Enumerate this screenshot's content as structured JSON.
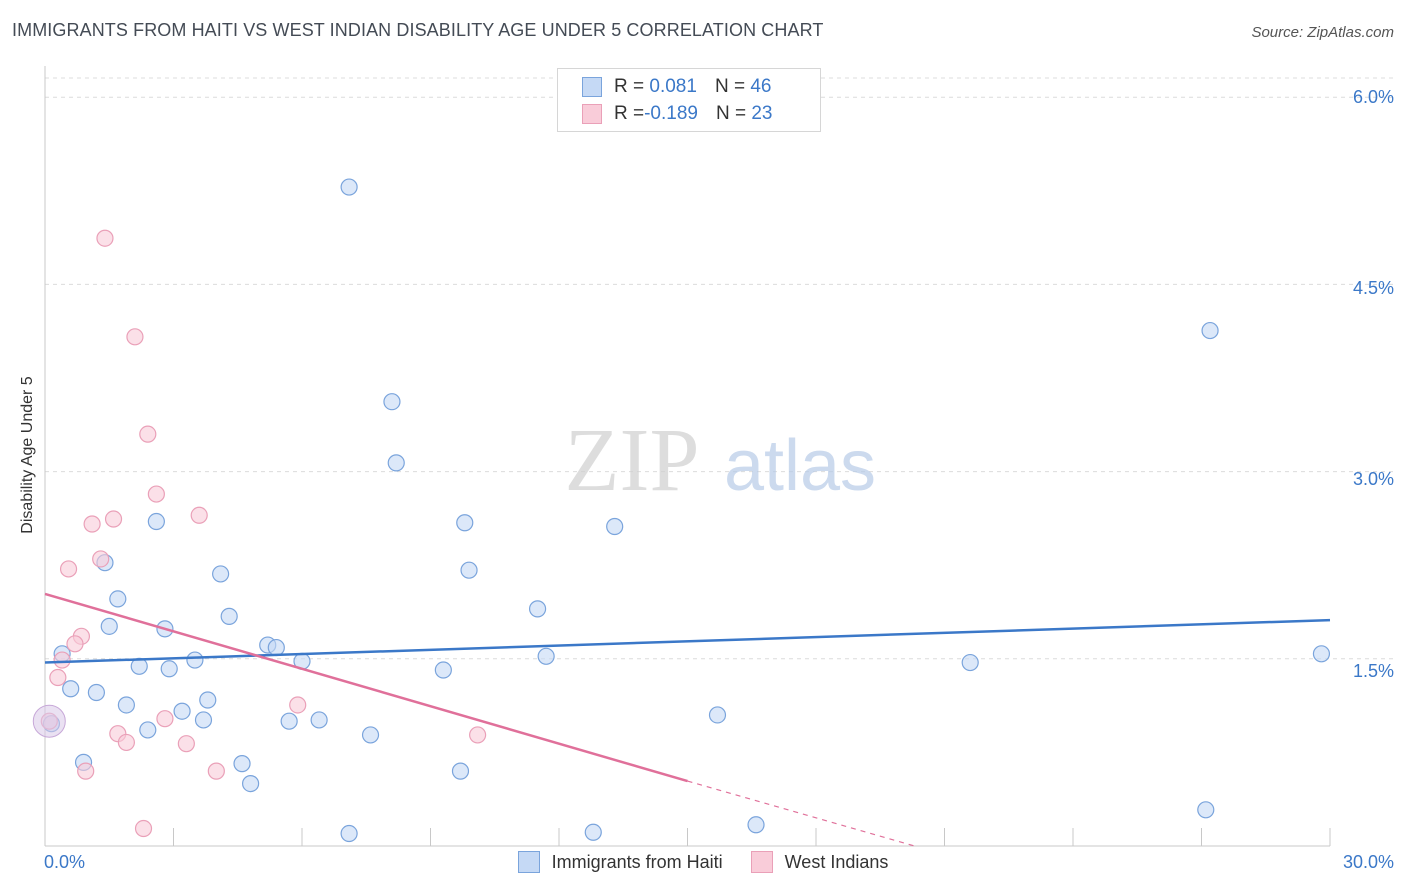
{
  "title": "IMMIGRANTS FROM HAITI VS WEST INDIAN DISABILITY AGE UNDER 5 CORRELATION CHART",
  "source": "Source: ZipAtlas.com",
  "watermark": {
    "zip": "ZIP",
    "atlas": "atlas"
  },
  "colors": {
    "blue": "#3b78c8",
    "blue_fill": "#c5d9f5",
    "pink": "#e0709a",
    "pink_fill": "#f9ccd9",
    "grid": "#dcdcdc"
  },
  "legend": {
    "rows": [
      {
        "r_label": "R = ",
        "r_value": " 0.081",
        "n_label": "N = ",
        "n_value": "46"
      },
      {
        "r_label": "R = ",
        "r_value": "-0.189",
        "n_label": "N = ",
        "n_value": "23"
      }
    ]
  },
  "chart_data": {
    "type": "scatter",
    "title": "IMMIGRANTS FROM HAITI VS WEST INDIAN DISABILITY AGE UNDER 5 CORRELATION CHART",
    "xlabel": "",
    "ylabel": "Disability Age Under 5",
    "xlim": [
      0,
      30
    ],
    "ylim": [
      0,
      6.25
    ],
    "x_tick_labels": [
      "0.0%",
      "30.0%"
    ],
    "y_ticks": [
      1.5,
      3.0,
      4.5,
      6.0
    ],
    "y_tick_labels": [
      "1.5%",
      "3.0%",
      "4.5%",
      "6.0%"
    ],
    "grid": true,
    "legend_position": "bottom",
    "series": [
      {
        "name": "Immigrants from Haiti",
        "color": "#3b78c8",
        "trend": {
          "x": [
            0,
            30
          ],
          "y": [
            1.47,
            1.81
          ]
        },
        "points": [
          [
            7.1,
            5.28
          ],
          [
            27.2,
            4.13
          ],
          [
            8.1,
            3.56
          ],
          [
            8.2,
            3.07
          ],
          [
            2.6,
            2.6
          ],
          [
            9.8,
            2.59
          ],
          [
            13.3,
            2.56
          ],
          [
            1.4,
            2.27
          ],
          [
            9.9,
            2.21
          ],
          [
            4.1,
            2.18
          ],
          [
            1.7,
            1.98
          ],
          [
            11.5,
            1.9
          ],
          [
            4.3,
            1.84
          ],
          [
            1.5,
            1.76
          ],
          [
            2.8,
            1.74
          ],
          [
            5.2,
            1.61
          ],
          [
            5.4,
            1.59
          ],
          [
            0.4,
            1.54
          ],
          [
            11.7,
            1.52
          ],
          [
            29.8,
            1.54
          ],
          [
            3.5,
            1.49
          ],
          [
            6.0,
            1.48
          ],
          [
            21.6,
            1.47
          ],
          [
            2.2,
            1.44
          ],
          [
            2.9,
            1.42
          ],
          [
            9.3,
            1.41
          ],
          [
            0.6,
            1.26
          ],
          [
            1.2,
            1.23
          ],
          [
            3.8,
            1.17
          ],
          [
            1.9,
            1.13
          ],
          [
            3.2,
            1.08
          ],
          [
            15.7,
            1.05
          ],
          [
            3.7,
            1.01
          ],
          [
            5.7,
            1.0
          ],
          [
            6.4,
            1.01
          ],
          [
            2.4,
            0.93
          ],
          [
            0.15,
            0.98
          ],
          [
            7.6,
            0.89
          ],
          [
            0.9,
            0.67
          ],
          [
            4.6,
            0.66
          ],
          [
            9.7,
            0.6
          ],
          [
            4.8,
            0.5
          ],
          [
            27.1,
            0.29
          ],
          [
            16.6,
            0.17
          ],
          [
            7.1,
            0.1
          ],
          [
            12.8,
            0.11
          ]
        ]
      },
      {
        "name": "West Indians",
        "color": "#e0709a",
        "trend": {
          "x": [
            0,
            15
          ],
          "y": [
            2.02,
            0.52
          ]
        },
        "trend_dashed": {
          "x": [
            15,
            20.3
          ],
          "y": [
            0.52,
            0.0
          ]
        },
        "points": [
          [
            1.4,
            4.87
          ],
          [
            2.1,
            4.08
          ],
          [
            2.4,
            3.3
          ],
          [
            2.6,
            2.82
          ],
          [
            3.6,
            2.65
          ],
          [
            1.6,
            2.62
          ],
          [
            1.1,
            2.58
          ],
          [
            1.3,
            2.3
          ],
          [
            0.55,
            2.22
          ],
          [
            0.85,
            1.68
          ],
          [
            0.7,
            1.62
          ],
          [
            0.4,
            1.49
          ],
          [
            0.3,
            1.35
          ],
          [
            5.9,
            1.13
          ],
          [
            2.8,
            1.02
          ],
          [
            0.1,
            1.0
          ],
          [
            1.7,
            0.9
          ],
          [
            10.1,
            0.89
          ],
          [
            1.9,
            0.83
          ],
          [
            3.3,
            0.82
          ],
          [
            0.95,
            0.6
          ],
          [
            4.0,
            0.6
          ],
          [
            2.3,
            0.14
          ]
        ]
      }
    ]
  }
}
